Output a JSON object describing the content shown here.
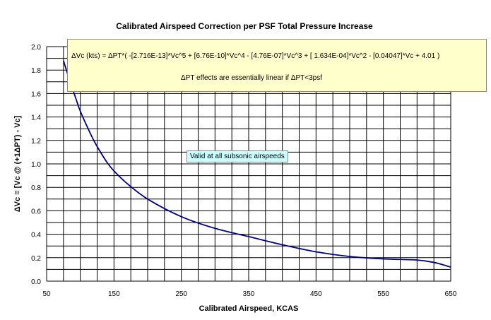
{
  "chart_data": {
    "type": "line",
    "title": "Calibrated Airspeed Correction per PSF Total Pressure Increase",
    "xlabel": "Calibrated Airspeed, KCAS",
    "ylabel": "ΔVc = [Vc @ (+1ΔPT) - Vc]",
    "xlim": [
      50,
      650
    ],
    "ylim": [
      0,
      2.0
    ],
    "x_ticks": [
      "50",
      "150",
      "250",
      "350",
      "450",
      "550",
      "650"
    ],
    "y_ticks": [
      "0.0",
      "0.2",
      "0.4",
      "0.6",
      "0.8",
      "1.0",
      "1.2",
      "1.4",
      "1.6",
      "1.8",
      "2.0"
    ],
    "grid": true,
    "series": [
      {
        "x": [
          75,
          85,
          95,
          100,
          110,
          120,
          130,
          140,
          150,
          170,
          200,
          250,
          300,
          350,
          400,
          450,
          500,
          550,
          600,
          625,
          650
        ],
        "values": [
          1.88,
          1.7,
          1.53,
          1.45,
          1.32,
          1.2,
          1.1,
          1.01,
          0.94,
          0.83,
          0.7,
          0.55,
          0.45,
          0.38,
          0.31,
          0.25,
          0.21,
          0.19,
          0.18,
          0.16,
          0.12
        ]
      }
    ],
    "color": "#000080",
    "annotations": [
      "ΔVc (kts) = ΔPT*( -[2.716E-13]*Vc^5 + [6.76E-10]*Vc^4 - [4.76E-07]*Vc^3 + [ 1.634E-04]*Vc^2 - [0.04047]*Vc + 4.01 )",
      "ΔPT effects are essentially linear if   ΔPT<3psf",
      "Valid at all subsonic airspeeds"
    ]
  }
}
